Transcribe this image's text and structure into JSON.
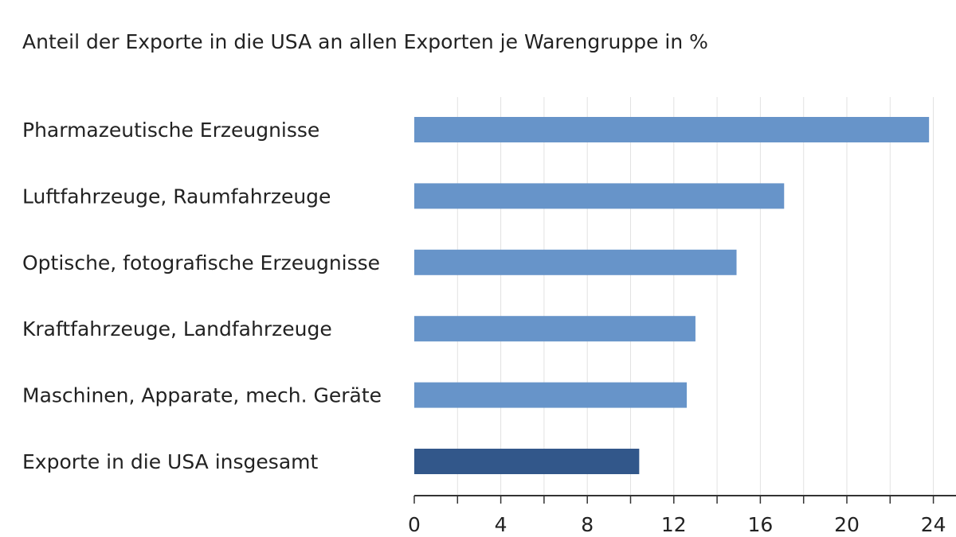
{
  "chart_data": {
    "type": "bar",
    "orientation": "horizontal",
    "title": "Anteil der Exporte in die USA an allen Exporten je Warengruppe in %",
    "categories": [
      "Pharmazeutische Erzeugnisse",
      "Luftfahrzeuge, Raumfahrzeuge",
      "Optische, fotografische Erzeugnisse",
      "Kraftfahrzeuge, Landfahrzeuge",
      "Maschinen, Apparate, mech. Geräte",
      "Exporte in die USA insgesamt"
    ],
    "values": [
      23.8,
      17.1,
      14.9,
      13.0,
      12.6,
      10.4
    ],
    "xlim": [
      0,
      25
    ],
    "xticks": [
      0,
      4,
      8,
      12,
      16,
      20,
      24
    ],
    "xlabel": "",
    "ylabel": "",
    "grid": "vertical",
    "legend": "none",
    "colors": {
      "bar": "#6794c9",
      "bar_highlight": "#32578a",
      "grid": "#e2e2e2",
      "axis": "#333333"
    },
    "highlight_index": 5
  }
}
